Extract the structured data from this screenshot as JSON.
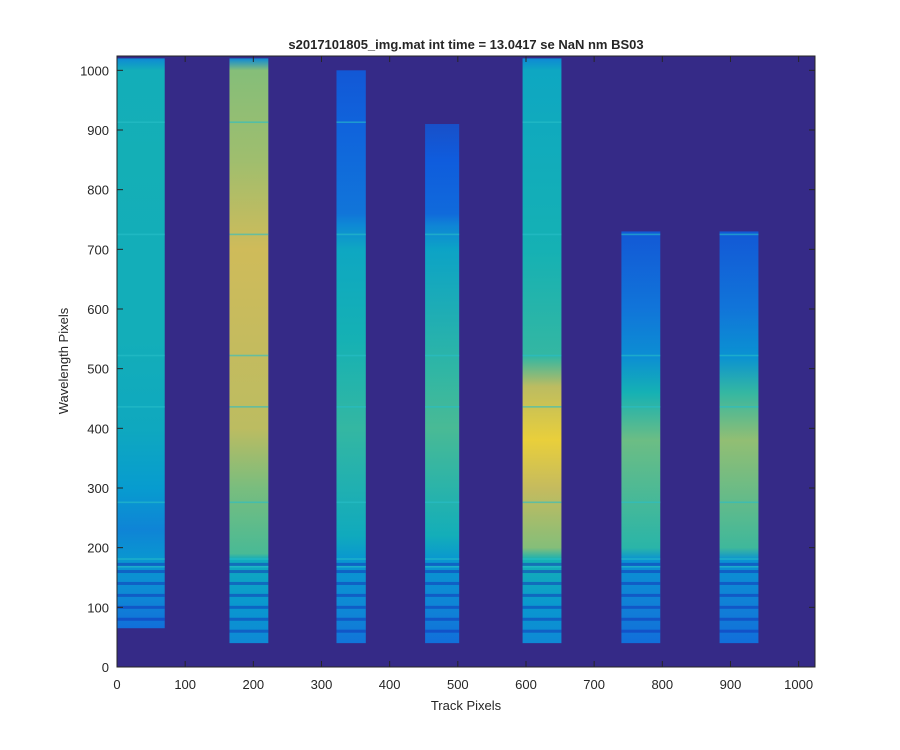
{
  "chart_data": {
    "type": "heatmap",
    "title": "s2017101805_img.mat int time = 13.0417 se  NaN nm BS03",
    "xlabel": "Track Pixels",
    "ylabel": "Wavelength Pixels",
    "xlim": [
      0,
      1024
    ],
    "ylim": [
      0,
      1024
    ],
    "xticks": [
      0,
      100,
      200,
      300,
      400,
      500,
      600,
      700,
      800,
      900,
      1000
    ],
    "yticks": [
      0,
      100,
      200,
      300,
      400,
      500,
      600,
      700,
      800,
      900,
      1000
    ],
    "colormap": "parula",
    "colors": {
      "background": "#352a87",
      "axis": "#262626"
    },
    "tracks": [
      {
        "x_start": 0,
        "x_end": 70,
        "y_bottom": 65,
        "y_top": 1020,
        "profile": [
          {
            "y": 65,
            "v": 0.2
          },
          {
            "y": 120,
            "v": 0.3
          },
          {
            "y": 180,
            "v": 0.36
          },
          {
            "y": 230,
            "v": 0.28
          },
          {
            "y": 300,
            "v": 0.38
          },
          {
            "y": 400,
            "v": 0.45
          },
          {
            "y": 550,
            "v": 0.48
          },
          {
            "y": 700,
            "v": 0.48
          },
          {
            "y": 850,
            "v": 0.49
          },
          {
            "y": 1000,
            "v": 0.48
          },
          {
            "y": 1020,
            "v": 0.3
          }
        ]
      },
      {
        "x_start": 165,
        "x_end": 222,
        "y_bottom": 40,
        "y_top": 1020,
        "profile": [
          {
            "y": 40,
            "v": 0.3
          },
          {
            "y": 100,
            "v": 0.36
          },
          {
            "y": 180,
            "v": 0.46
          },
          {
            "y": 190,
            "v": 0.6
          },
          {
            "y": 300,
            "v": 0.68
          },
          {
            "y": 400,
            "v": 0.8
          },
          {
            "y": 550,
            "v": 0.82
          },
          {
            "y": 700,
            "v": 0.84
          },
          {
            "y": 850,
            "v": 0.74
          },
          {
            "y": 1000,
            "v": 0.7
          },
          {
            "y": 1020,
            "v": 0.3
          }
        ]
      },
      {
        "x_start": 322,
        "x_end": 365,
        "y_bottom": 40,
        "y_top": 1000,
        "profile": [
          {
            "y": 40,
            "v": 0.22
          },
          {
            "y": 100,
            "v": 0.3
          },
          {
            "y": 180,
            "v": 0.36
          },
          {
            "y": 220,
            "v": 0.46
          },
          {
            "y": 400,
            "v": 0.56
          },
          {
            "y": 550,
            "v": 0.5
          },
          {
            "y": 700,
            "v": 0.44
          },
          {
            "y": 740,
            "v": 0.3
          },
          {
            "y": 760,
            "v": 0.22
          },
          {
            "y": 900,
            "v": 0.16
          },
          {
            "y": 1000,
            "v": 0.12
          }
        ]
      },
      {
        "x_start": 452,
        "x_end": 502,
        "y_bottom": 40,
        "y_top": 910,
        "profile": [
          {
            "y": 40,
            "v": 0.2
          },
          {
            "y": 100,
            "v": 0.28
          },
          {
            "y": 180,
            "v": 0.36
          },
          {
            "y": 220,
            "v": 0.48
          },
          {
            "y": 400,
            "v": 0.6
          },
          {
            "y": 500,
            "v": 0.55
          },
          {
            "y": 700,
            "v": 0.42
          },
          {
            "y": 740,
            "v": 0.28
          },
          {
            "y": 760,
            "v": 0.18
          },
          {
            "y": 850,
            "v": 0.13
          },
          {
            "y": 910,
            "v": 0.1
          }
        ]
      },
      {
        "x_start": 595,
        "x_end": 652,
        "y_bottom": 40,
        "y_top": 1020,
        "profile": [
          {
            "y": 40,
            "v": 0.3
          },
          {
            "y": 100,
            "v": 0.36
          },
          {
            "y": 180,
            "v": 0.5
          },
          {
            "y": 200,
            "v": 0.7
          },
          {
            "y": 300,
            "v": 0.82
          },
          {
            "y": 380,
            "v": 0.92
          },
          {
            "y": 470,
            "v": 0.8
          },
          {
            "y": 520,
            "v": 0.56
          },
          {
            "y": 700,
            "v": 0.5
          },
          {
            "y": 1000,
            "v": 0.44
          },
          {
            "y": 1020,
            "v": 0.3
          }
        ]
      },
      {
        "x_start": 740,
        "x_end": 797,
        "y_bottom": 40,
        "y_top": 730,
        "profile": [
          {
            "y": 40,
            "v": 0.2
          },
          {
            "y": 100,
            "v": 0.26
          },
          {
            "y": 180,
            "v": 0.34
          },
          {
            "y": 200,
            "v": 0.54
          },
          {
            "y": 380,
            "v": 0.66
          },
          {
            "y": 460,
            "v": 0.5
          },
          {
            "y": 520,
            "v": 0.32
          },
          {
            "y": 600,
            "v": 0.22
          },
          {
            "y": 730,
            "v": 0.12
          }
        ]
      },
      {
        "x_start": 884,
        "x_end": 941,
        "y_bottom": 40,
        "y_top": 730,
        "profile": [
          {
            "y": 40,
            "v": 0.2
          },
          {
            "y": 100,
            "v": 0.26
          },
          {
            "y": 180,
            "v": 0.34
          },
          {
            "y": 200,
            "v": 0.58
          },
          {
            "y": 380,
            "v": 0.72
          },
          {
            "y": 460,
            "v": 0.56
          },
          {
            "y": 520,
            "v": 0.34
          },
          {
            "y": 600,
            "v": 0.22
          },
          {
            "y": 730,
            "v": 0.12
          }
        ]
      }
    ],
    "bright_lines_y": [
      913,
      725,
      522,
      436,
      276,
      181,
      168
    ],
    "dark_bands_y": [
      172,
      160,
      140,
      120,
      100,
      80,
      60
    ]
  }
}
